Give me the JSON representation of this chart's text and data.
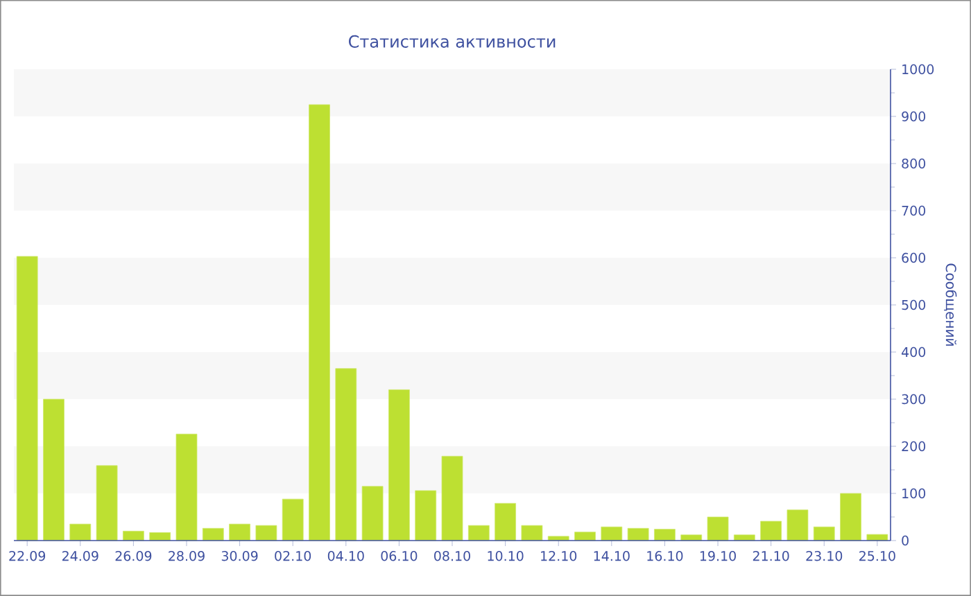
{
  "chart_data": {
    "type": "bar",
    "title": "Статистика активности",
    "ylabel": "Сообщений",
    "categories": [
      "22.09",
      null,
      "24.09",
      null,
      "26.09",
      null,
      "28.09",
      null,
      "30.09",
      null,
      "02.10",
      null,
      "04.10",
      null,
      "06.10",
      null,
      "08.10",
      null,
      "10.10",
      null,
      "12.10",
      null,
      "14.10",
      null,
      "16.10",
      null,
      "19.10",
      null,
      "21.10",
      null,
      "23.10",
      null,
      "25.10"
    ],
    "values": [
      603,
      300,
      35,
      159,
      20,
      17,
      226,
      26,
      35,
      32,
      88,
      925,
      365,
      115,
      320,
      106,
      179,
      32,
      79,
      32,
      9,
      18,
      29,
      26,
      24,
      12,
      50,
      12,
      41,
      65,
      29,
      100,
      13
    ],
    "color": "#bde032",
    "ylim": [
      0,
      1000
    ],
    "yticks": [
      0,
      100,
      200,
      300,
      400,
      500,
      600,
      700,
      800,
      900,
      1000
    ],
    "bands": [
      {
        "axis": "y",
        "from": 100,
        "to": 200,
        "color": "#f7f7f7"
      },
      {
        "axis": "y",
        "from": 300,
        "to": 400,
        "color": "#f7f7f7"
      },
      {
        "axis": "y",
        "from": 500,
        "to": 600,
        "color": "#f7f7f7"
      },
      {
        "axis": "y",
        "from": 700,
        "to": 800,
        "color": "#f7f7f7"
      },
      {
        "axis": "y",
        "from": 900,
        "to": 1000,
        "color": "#f7f7f7"
      }
    ],
    "grid": false
  }
}
